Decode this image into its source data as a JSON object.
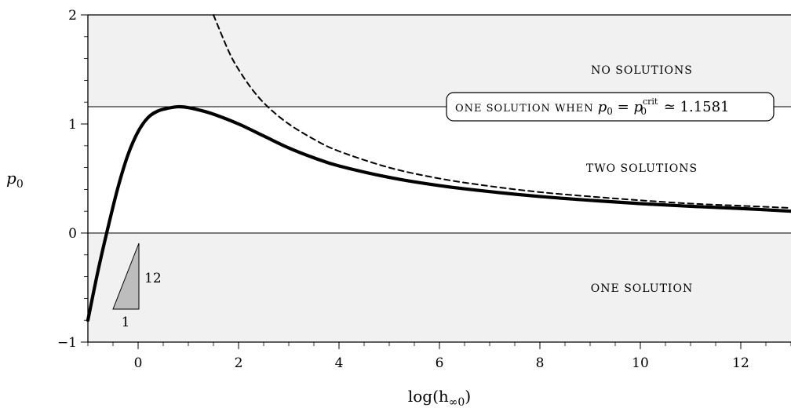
{
  "chart_data": {
    "type": "line",
    "xlabel_text": "log(h",
    "xlabel_sub": "∞0",
    "xlabel_close": ")",
    "ylabel_text": "p",
    "ylabel_sub": "0",
    "xlim": [
      -1,
      13
    ],
    "ylim": [
      -1,
      2
    ],
    "x_ticks": [
      0,
      2,
      4,
      6,
      8,
      10,
      12
    ],
    "x_tick_labels": [
      "0",
      "2",
      "4",
      "6",
      "8",
      "10",
      "12"
    ],
    "y_ticks": [
      -1,
      0,
      1,
      2
    ],
    "y_tick_labels": [
      "−1",
      "0",
      "1",
      "2"
    ],
    "grid": false,
    "critical_value": 1.1581,
    "shaded_regions": [
      {
        "y_range": [
          1.1581,
          2
        ],
        "fill": "#f1f1f1"
      },
      {
        "y_range": [
          -1,
          0
        ],
        "fill": "#f1f1f1"
      }
    ],
    "region_labels": {
      "no_solutions": "NO SOLUTIONS",
      "two_solutions": "TWO SOLUTIONS",
      "one_solution": "ONE SOLUTION",
      "critical_box_prefix": "ONE SOLUTION WHEN ",
      "critical_box_p": "p",
      "critical_box_sub0": "0",
      "critical_box_eq": " = ",
      "critical_box_p2": "p",
      "critical_box_sub02": "0",
      "critical_box_sup": "crit",
      "critical_box_value": " ≃ 1.1581"
    },
    "slope_triangle": {
      "run_label": "1",
      "rise_label": "12"
    },
    "series": [
      {
        "style": "solid-thick",
        "color": "#000000",
        "x": [
          -1.0,
          -0.8,
          -0.6,
          -0.4,
          -0.2,
          0.0,
          0.2,
          0.4,
          0.6,
          0.8,
          1.0,
          1.2,
          1.5,
          2.0,
          2.5,
          3.0,
          3.5,
          4.0,
          5.0,
          6.0,
          7.0,
          8.0,
          9.0,
          10.0,
          11.0,
          12.0,
          13.0
        ],
        "y": [
          -0.8,
          -0.35,
          0.05,
          0.42,
          0.72,
          0.93,
          1.06,
          1.12,
          1.145,
          1.158,
          1.15,
          1.13,
          1.09,
          1.0,
          0.89,
          0.78,
          0.69,
          0.615,
          0.51,
          0.435,
          0.38,
          0.335,
          0.3,
          0.27,
          0.245,
          0.225,
          0.2
        ]
      },
      {
        "style": "dashed",
        "color": "#000000",
        "x": [
          1.5,
          1.8,
          2.0,
          2.3,
          2.6,
          3.0,
          3.5,
          4.0,
          5.0,
          6.0,
          7.0,
          8.0,
          9.0,
          10.0,
          11.0,
          12.0,
          13.0
        ],
        "y": [
          2.0,
          1.67,
          1.5,
          1.3,
          1.15,
          1.0,
          0.86,
          0.75,
          0.6,
          0.5,
          0.43,
          0.375,
          0.335,
          0.3,
          0.27,
          0.25,
          0.23
        ]
      }
    ]
  }
}
